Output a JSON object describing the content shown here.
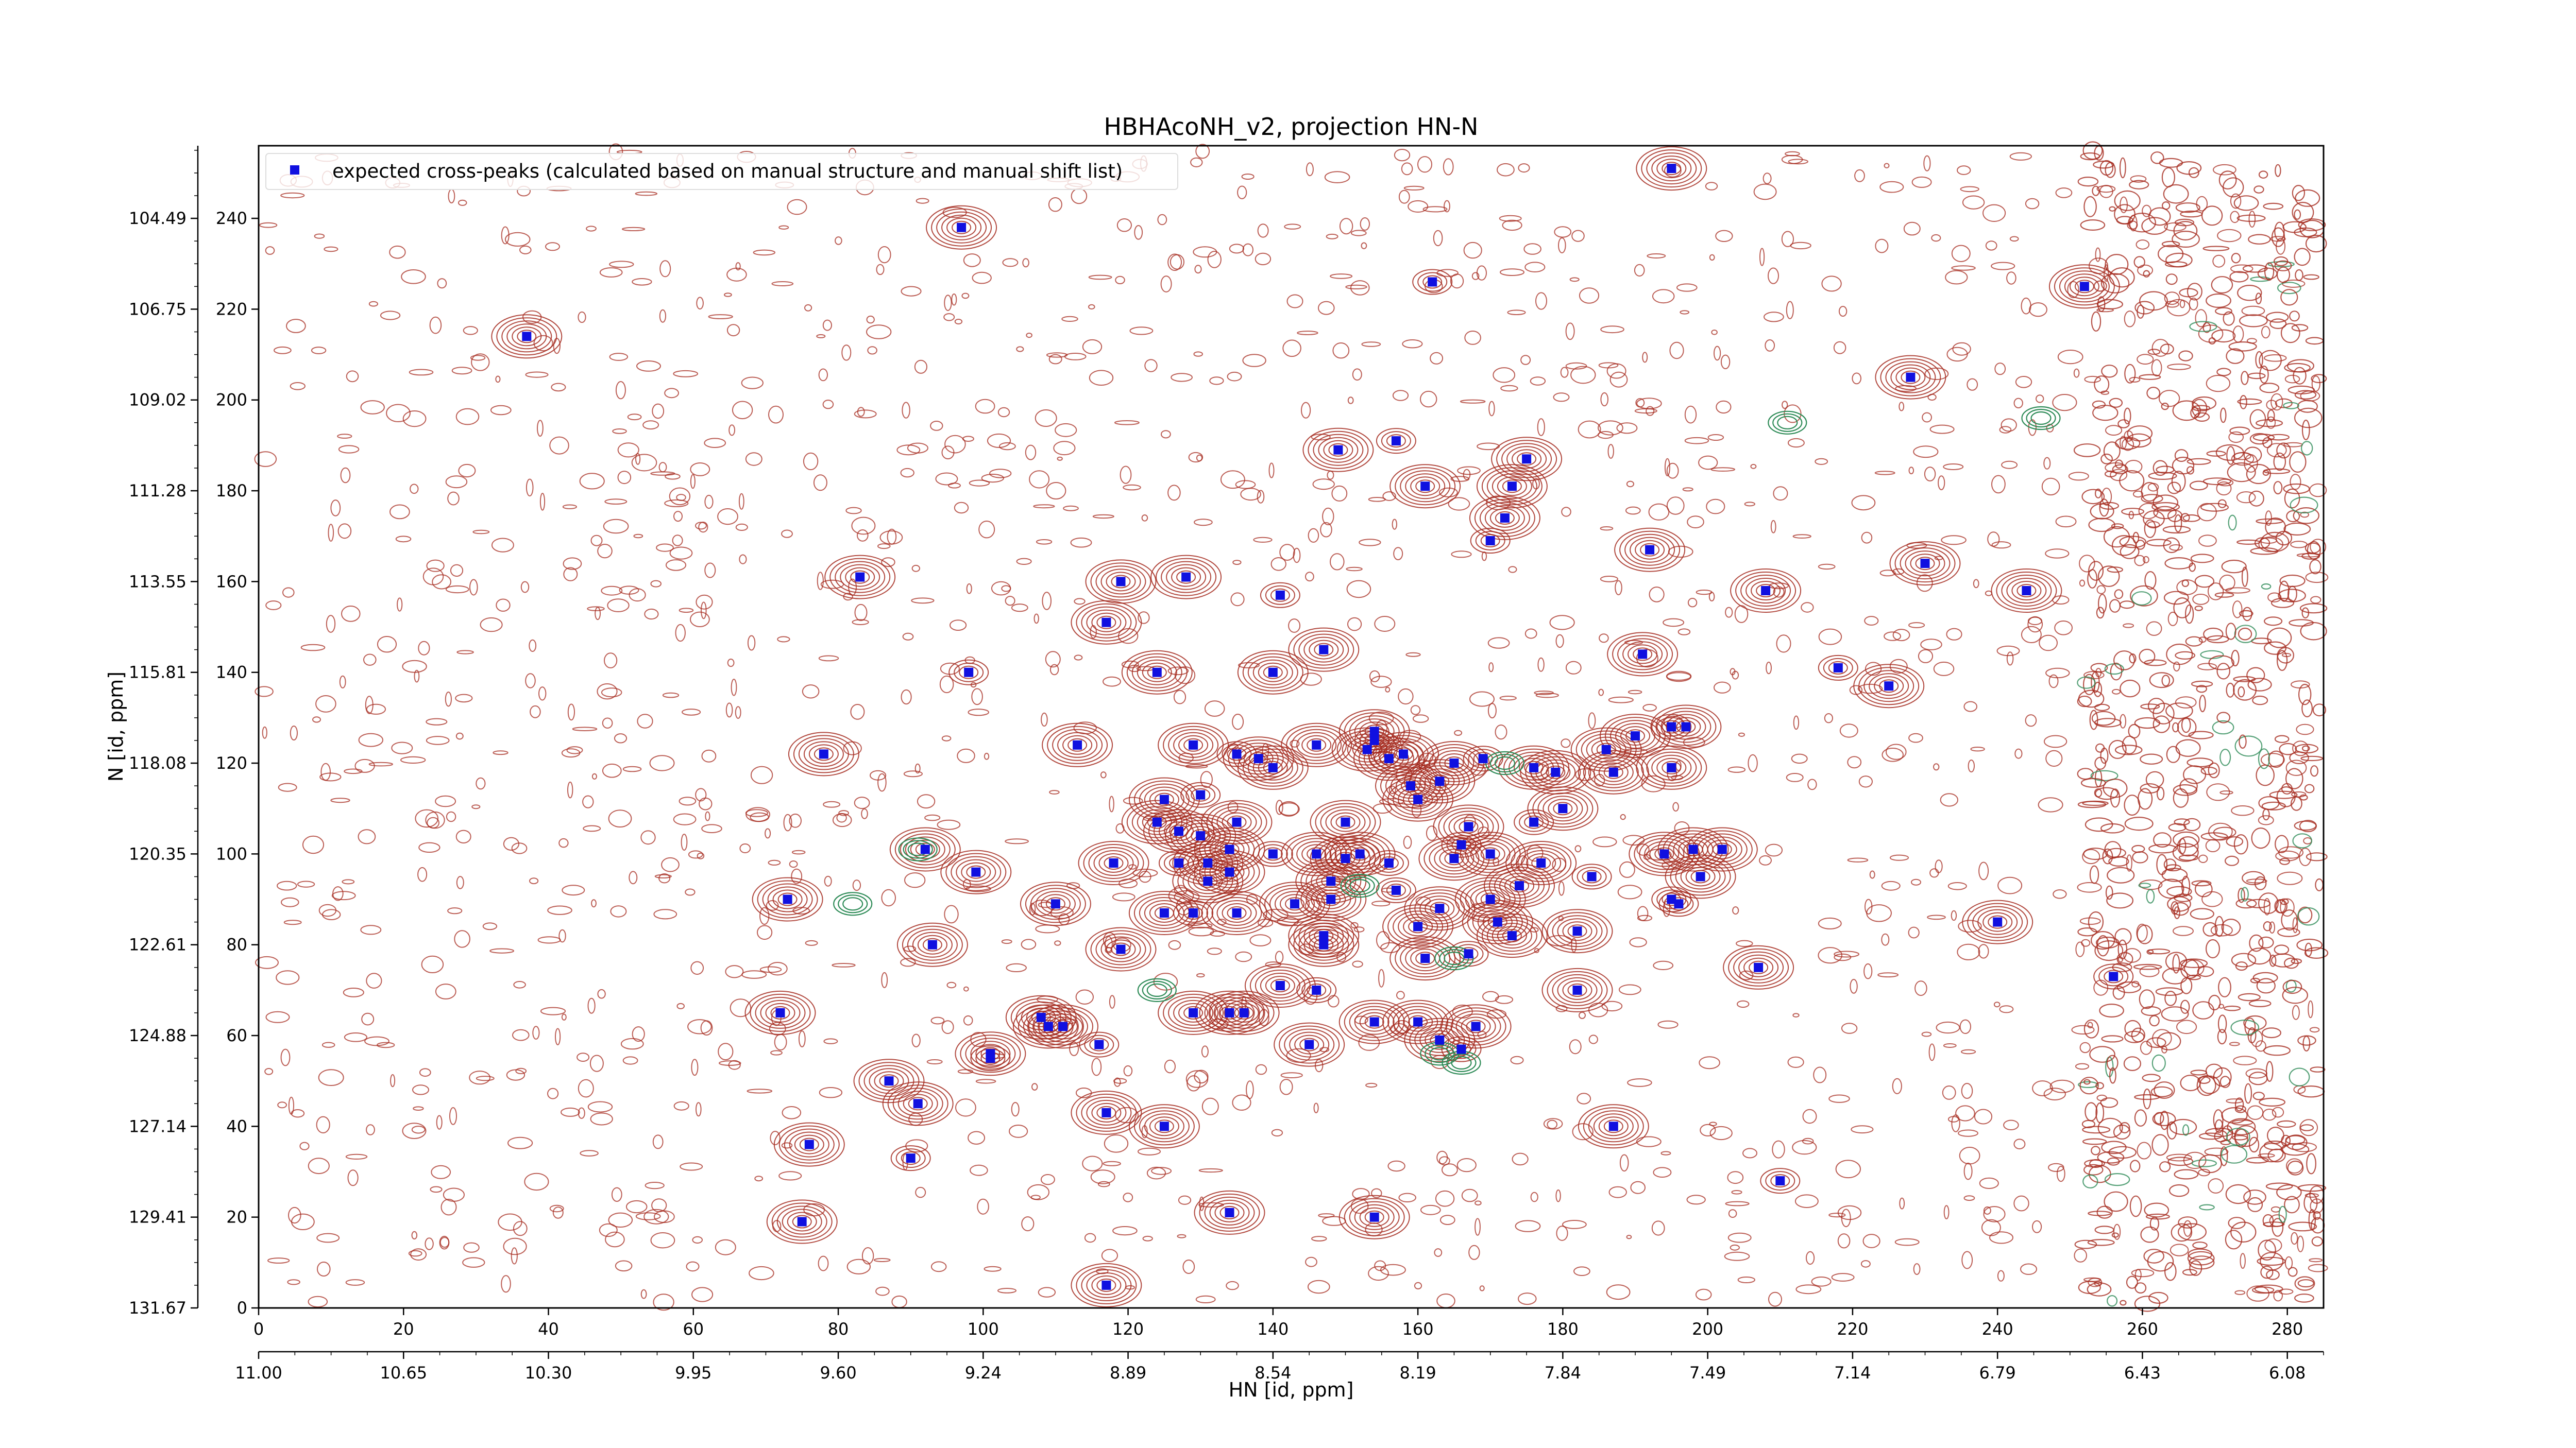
{
  "chart_data": {
    "type": "scatter",
    "title": "HBHAcoNH_v2, projection HN-N",
    "xlabel": "HN [id, ppm]",
    "ylabel": "N [id, ppm]",
    "x_index_lim": [
      0,
      285
    ],
    "y_index_lim": [
      0,
      256
    ],
    "x_index_ticks": [
      "0",
      "20",
      "40",
      "60",
      "80",
      "100",
      "120",
      "140",
      "160",
      "180",
      "200",
      "220",
      "240",
      "260",
      "280"
    ],
    "y_index_ticks": [
      "0",
      "20",
      "40",
      "60",
      "80",
      "100",
      "120",
      "140",
      "160",
      "180",
      "200",
      "220",
      "240"
    ],
    "x_ppm_ticks": [
      "11.00",
      "10.65",
      "10.30",
      "9.95",
      "9.60",
      "9.24",
      "8.89",
      "8.54",
      "8.19",
      "7.84",
      "7.49",
      "7.14",
      "6.79",
      "6.43",
      "6.08"
    ],
    "y_ppm_ticks": [
      "131.67",
      "129.41",
      "127.14",
      "124.88",
      "122.61",
      "120.35",
      "118.08",
      "115.81",
      "113.55",
      "111.28",
      "109.02",
      "106.75",
      "104.49"
    ],
    "legend_position": "upper-left",
    "grid": false,
    "colors": {
      "positive_contour": "#a52a1e",
      "negative_contour": "#2e8b57",
      "marker": "#1010e0"
    },
    "series": [
      {
        "name": "expected cross-peaks (calculated based on manual structure and manual shift list)",
        "marker": "square",
        "color": "#1010e0",
        "points": [
          [
            37,
            214
          ],
          [
            97,
            238
          ],
          [
            162,
            226
          ],
          [
            195,
            251
          ],
          [
            228,
            205
          ],
          [
            252,
            225
          ],
          [
            149,
            189
          ],
          [
            157,
            191
          ],
          [
            175,
            187
          ],
          [
            161,
            181
          ],
          [
            173,
            181
          ],
          [
            172,
            174
          ],
          [
            170,
            169
          ],
          [
            192,
            167
          ],
          [
            230,
            164
          ],
          [
            83,
            161
          ],
          [
            128,
            161
          ],
          [
            141,
            157
          ],
          [
            119,
            160
          ],
          [
            117,
            151
          ],
          [
            208,
            158
          ],
          [
            244,
            158
          ],
          [
            98,
            140
          ],
          [
            124,
            140
          ],
          [
            140,
            140
          ],
          [
            147,
            145
          ],
          [
            191,
            144
          ],
          [
            218,
            141
          ],
          [
            225,
            137
          ],
          [
            78,
            122
          ],
          [
            113,
            124
          ],
          [
            129,
            124
          ],
          [
            135,
            122
          ],
          [
            138,
            121
          ],
          [
            140,
            119
          ],
          [
            146,
            124
          ],
          [
            154,
            127
          ],
          [
            154,
            125
          ],
          [
            153,
            123
          ],
          [
            156,
            121
          ],
          [
            158,
            122
          ],
          [
            165,
            120
          ],
          [
            169,
            121
          ],
          [
            176,
            119
          ],
          [
            187,
            118
          ],
          [
            186,
            123
          ],
          [
            190,
            126
          ],
          [
            195,
            128
          ],
          [
            197,
            128
          ],
          [
            195,
            119
          ],
          [
            160,
            112
          ],
          [
            167,
            106
          ],
          [
            176,
            107
          ],
          [
            179,
            118
          ],
          [
            163,
            116
          ],
          [
            159,
            115
          ],
          [
            125,
            112
          ],
          [
            130,
            113
          ],
          [
            124,
            107
          ],
          [
            127,
            105
          ],
          [
            135,
            107
          ],
          [
            150,
            107
          ],
          [
            166,
            102
          ],
          [
            180,
            110
          ],
          [
            92,
            101
          ],
          [
            99,
            96
          ],
          [
            118,
            98
          ],
          [
            127,
            98
          ],
          [
            130,
            104
          ],
          [
            131,
            98
          ],
          [
            134,
            101
          ],
          [
            134,
            96
          ],
          [
            140,
            100
          ],
          [
            146,
            100
          ],
          [
            148,
            94
          ],
          [
            150,
            99
          ],
          [
            152,
            100
          ],
          [
            156,
            98
          ],
          [
            165,
            99
          ],
          [
            170,
            100
          ],
          [
            174,
            93
          ],
          [
            177,
            98
          ],
          [
            184,
            95
          ],
          [
            194,
            100
          ],
          [
            198,
            101
          ],
          [
            202,
            101
          ],
          [
            199,
            95
          ],
          [
            196,
            89
          ],
          [
            73,
            90
          ],
          [
            93,
            80
          ],
          [
            110,
            89
          ],
          [
            125,
            87
          ],
          [
            129,
            87
          ],
          [
            131,
            94
          ],
          [
            135,
            87
          ],
          [
            143,
            89
          ],
          [
            148,
            90
          ],
          [
            157,
            92
          ],
          [
            160,
            84
          ],
          [
            163,
            88
          ],
          [
            170,
            90
          ],
          [
            171,
            85
          ],
          [
            167,
            78
          ],
          [
            161,
            77
          ],
          [
            147,
            82
          ],
          [
            147,
            80
          ],
          [
            119,
            79
          ],
          [
            195,
            90
          ],
          [
            173,
            82
          ],
          [
            182,
            83
          ],
          [
            240,
            85
          ],
          [
            207,
            75
          ],
          [
            256,
            73
          ],
          [
            72,
            65
          ],
          [
            108,
            64
          ],
          [
            109,
            62
          ],
          [
            111,
            62
          ],
          [
            116,
            58
          ],
          [
            129,
            65
          ],
          [
            134,
            65
          ],
          [
            136,
            65
          ],
          [
            141,
            71
          ],
          [
            146,
            70
          ],
          [
            154,
            63
          ],
          [
            160,
            63
          ],
          [
            163,
            59
          ],
          [
            168,
            62
          ],
          [
            166,
            57
          ],
          [
            145,
            58
          ],
          [
            182,
            70
          ],
          [
            87,
            50
          ],
          [
            91,
            45
          ],
          [
            101,
            55
          ],
          [
            101,
            56
          ],
          [
            117,
            43
          ],
          [
            125,
            40
          ],
          [
            76,
            36
          ],
          [
            90,
            33
          ],
          [
            187,
            40
          ],
          [
            75,
            19
          ],
          [
            154,
            20
          ],
          [
            134,
            21
          ],
          [
            210,
            28
          ],
          [
            117,
            5
          ]
        ]
      }
    ]
  }
}
